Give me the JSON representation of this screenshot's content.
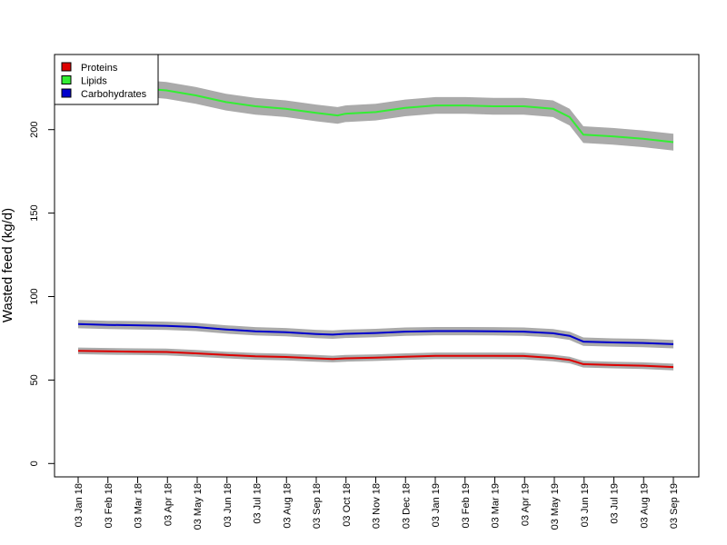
{
  "chart_data": {
    "type": "line",
    "title": "",
    "xlabel": "",
    "ylabel": "Wasted feed (kg/d)",
    "x_ticks": [
      "03 Jan 18",
      "03 Feb 18",
      "03 Mar 18",
      "03 Apr 18",
      "03 May 18",
      "03 Jun 18",
      "03 Jul 18",
      "03 Aug 18",
      "03 Sep 18",
      "03 Oct 18",
      "03 Nov 18",
      "03 Dec 18",
      "03 Jan 19",
      "03 Feb 19",
      "03 Mar 19",
      "03 Apr 19",
      "03 May 19",
      "03 Jun 19",
      "03 Jul 19",
      "03 Aug 19",
      "03 Sep 19"
    ],
    "xlim": [
      "2018-01-03",
      "2019-09-03"
    ],
    "y_ticks": [
      "0",
      "50",
      "100",
      "150",
      "200"
    ],
    "ylim": [
      -8,
      245
    ],
    "grid": false,
    "legend_position": "top-left",
    "series": [
      {
        "name": "Proteins",
        "color": "#dd0000",
        "band_color": "#aaaaaa",
        "band_width": 2,
        "x": [
          "2018-01-03",
          "2018-02-03",
          "2018-03-03",
          "2018-04-03",
          "2018-05-03",
          "2018-06-03",
          "2018-07-03",
          "2018-08-03",
          "2018-09-03",
          "2018-09-20",
          "2018-10-03",
          "2018-11-03",
          "2018-12-03",
          "2019-01-03",
          "2019-02-03",
          "2019-03-03",
          "2019-04-03",
          "2019-05-03",
          "2019-05-20",
          "2019-06-03",
          "2019-07-03",
          "2019-08-03",
          "2019-09-03"
        ],
        "values": [
          67.5,
          67.2,
          67.0,
          66.8,
          66.0,
          65.0,
          64.2,
          63.8,
          63.0,
          62.6,
          63.0,
          63.4,
          64.0,
          64.5,
          64.5,
          64.5,
          64.4,
          63.2,
          62.0,
          59.5,
          59.0,
          58.6,
          57.8
        ]
      },
      {
        "name": "Lipids",
        "color": "#33ee33",
        "band_color": "#aaaaaa",
        "band_width": 5,
        "x": [
          "2018-01-03",
          "2018-02-03",
          "2018-03-03",
          "2018-04-03",
          "2018-05-03",
          "2018-06-03",
          "2018-07-03",
          "2018-08-03",
          "2018-09-03",
          "2018-09-25",
          "2018-10-03",
          "2018-11-03",
          "2018-12-03",
          "2019-01-03",
          "2019-02-03",
          "2019-03-03",
          "2019-04-03",
          "2019-05-03",
          "2019-05-20",
          "2019-06-03",
          "2019-07-03",
          "2019-08-03",
          "2019-09-03"
        ],
        "values": [
          226.5,
          225.5,
          225.0,
          223.5,
          220.5,
          216.5,
          214.0,
          212.5,
          210.0,
          208.5,
          209.5,
          210.5,
          213.0,
          214.5,
          214.5,
          214.0,
          214.0,
          212.5,
          207.5,
          197.0,
          196.0,
          194.5,
          192.5
        ]
      },
      {
        "name": "Carbohydrates",
        "color": "#0000cc",
        "band_color": "#aaaaaa",
        "band_width": 2.5,
        "x": [
          "2018-01-03",
          "2018-02-03",
          "2018-03-03",
          "2018-04-03",
          "2018-05-03",
          "2018-06-03",
          "2018-07-03",
          "2018-08-03",
          "2018-09-03",
          "2018-09-20",
          "2018-10-03",
          "2018-11-03",
          "2018-12-03",
          "2019-01-03",
          "2019-02-03",
          "2019-03-03",
          "2019-04-03",
          "2019-05-03",
          "2019-05-20",
          "2019-06-03",
          "2019-07-03",
          "2019-08-03",
          "2019-09-03"
        ],
        "values": [
          83.5,
          83.0,
          82.8,
          82.5,
          81.8,
          80.3,
          79.2,
          78.7,
          77.6,
          77.2,
          77.7,
          78.2,
          79.0,
          79.3,
          79.3,
          79.2,
          79.0,
          78.0,
          76.5,
          73.0,
          72.5,
          72.2,
          71.5
        ]
      }
    ]
  }
}
